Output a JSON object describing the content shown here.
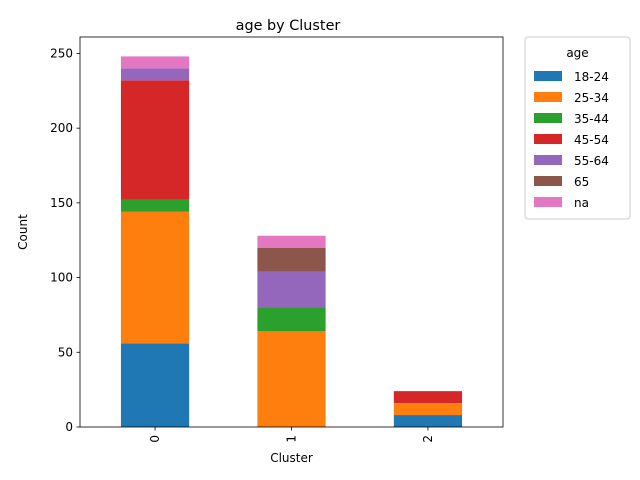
{
  "chart_data": {
    "type": "bar",
    "stacked": true,
    "title": "age by Cluster",
    "xlabel": "Cluster",
    "ylabel": "Count",
    "categories": [
      "0",
      "1",
      "2"
    ],
    "ylim": [
      0,
      261
    ],
    "yticks": [
      0,
      50,
      100,
      150,
      200,
      250
    ],
    "legend": {
      "title": "age",
      "placement": "outside-top-right"
    },
    "series": [
      {
        "name": "18-24",
        "color": "#1f77b4",
        "values": [
          56,
          0,
          8
        ]
      },
      {
        "name": "25-34",
        "color": "#ff7f0e",
        "values": [
          88,
          64,
          8
        ]
      },
      {
        "name": "35-44",
        "color": "#2ca02c",
        "values": [
          8,
          16,
          0
        ]
      },
      {
        "name": "45-54",
        "color": "#d62728",
        "values": [
          80,
          0,
          8
        ]
      },
      {
        "name": "55-64",
        "color": "#9467bd",
        "values": [
          8,
          24,
          0
        ]
      },
      {
        "name": "65",
        "color": "#8c564b",
        "values": [
          0,
          16,
          0
        ]
      },
      {
        "name": "na",
        "color": "#e377c2",
        "values": [
          8,
          8,
          0
        ]
      }
    ]
  }
}
